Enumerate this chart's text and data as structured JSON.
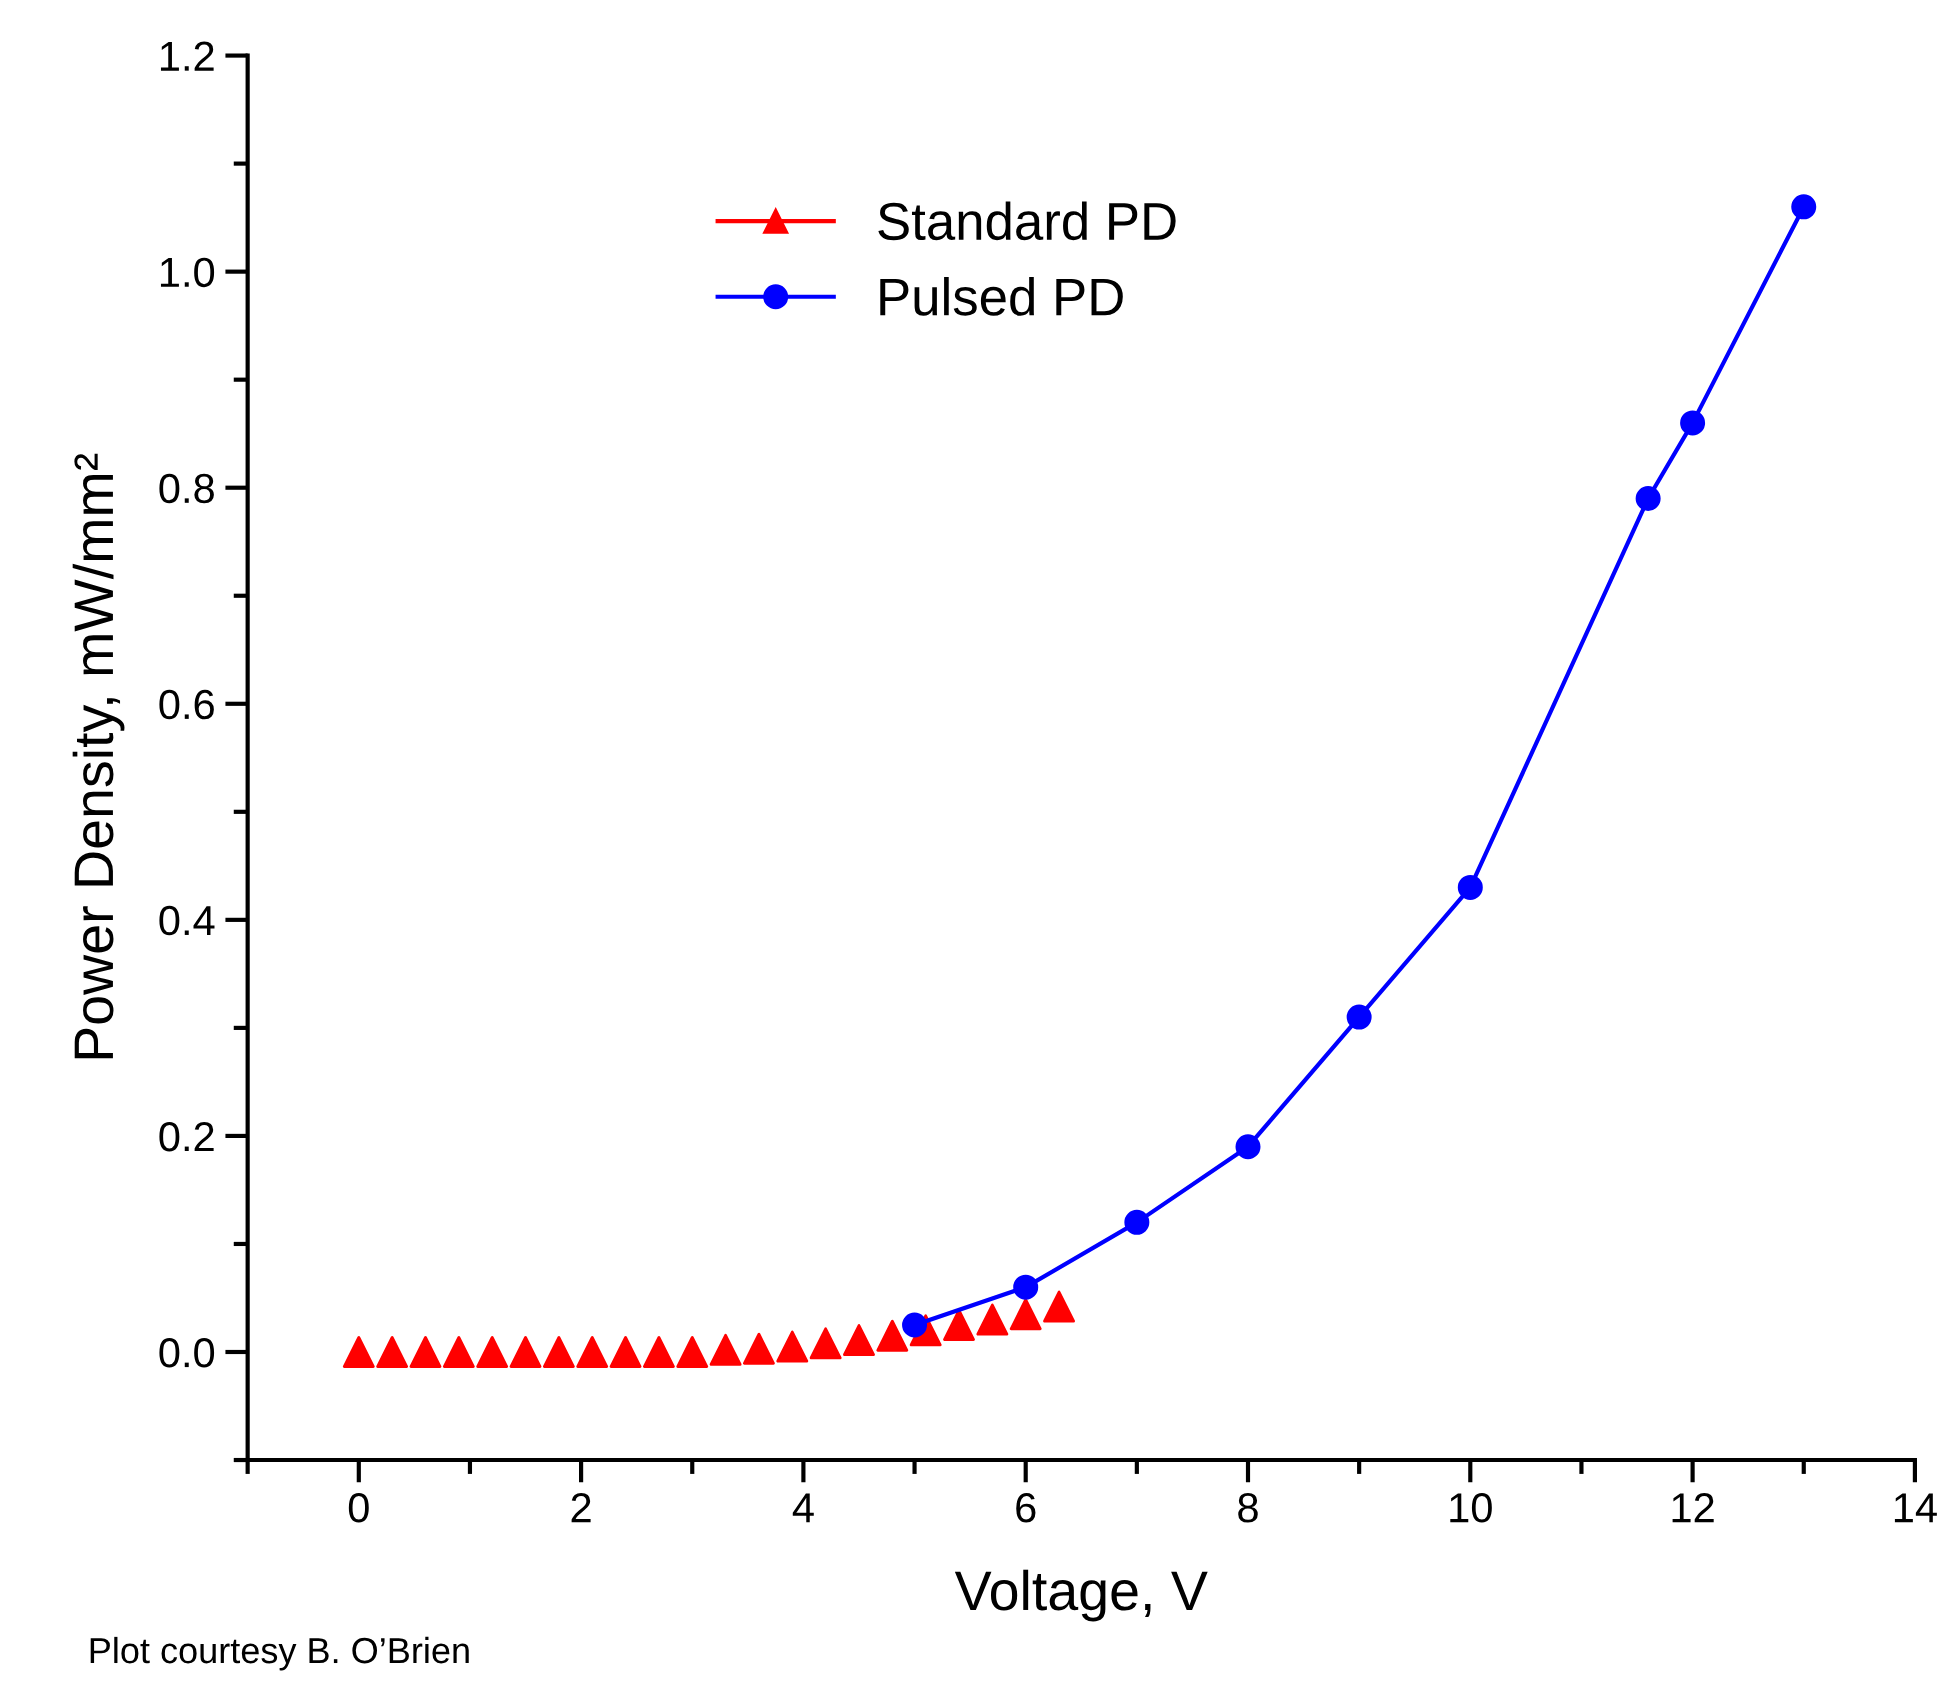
{
  "chart_data": {
    "type": "line",
    "xlabel": "Voltage, V",
    "ylabel": "Power Density, mW/mm²",
    "annotations": [
      "Plot courtesy B. O’Brien"
    ],
    "series": [
      {
        "name": "Standard PD",
        "type": "scatter",
        "color": "#ff0000",
        "marker": "triangle",
        "x": [
          0,
          0.3,
          0.6,
          0.9,
          1.2,
          1.5,
          1.8,
          2.1,
          2.4,
          2.7,
          3.0,
          3.3,
          3.6,
          3.9,
          4.2,
          4.5,
          4.8,
          5.1,
          5.4,
          5.7,
          6.0,
          6.3
        ],
        "values": [
          0,
          0,
          0,
          0,
          0,
          0,
          0,
          0,
          0,
          0,
          0,
          0.002,
          0.003,
          0.005,
          0.008,
          0.011,
          0.015,
          0.02,
          0.025,
          0.03,
          0.035,
          0.042
        ]
      },
      {
        "name": "Pulsed PD",
        "color": "#0000ff",
        "marker": "circle",
        "x": [
          5,
          6,
          7,
          8,
          9,
          10,
          11.6,
          12,
          13
        ],
        "values": [
          0.025,
          0.06,
          0.12,
          0.19,
          0.31,
          0.43,
          0.79,
          0.86,
          1.06
        ]
      }
    ],
    "xlim": [
      -1,
      14
    ],
    "xticks": [
      0,
      2,
      4,
      6,
      8,
      10,
      12,
      14
    ],
    "ylim": [
      -0.1,
      1.2
    ],
    "yticks": [
      {
        "value": 0,
        "label": "0.0"
      },
      {
        "value": 0.2,
        "label": "0.2"
      },
      {
        "value": 0.4,
        "label": "0.4"
      },
      {
        "value": 0.6,
        "label": "0.6"
      },
      {
        "value": 0.8,
        "label": "0.8"
      },
      {
        "value": 1.0,
        "label": "1.0"
      },
      {
        "value": 1.2,
        "label": "1.2"
      }
    ],
    "grid": false,
    "legend": "top"
  }
}
